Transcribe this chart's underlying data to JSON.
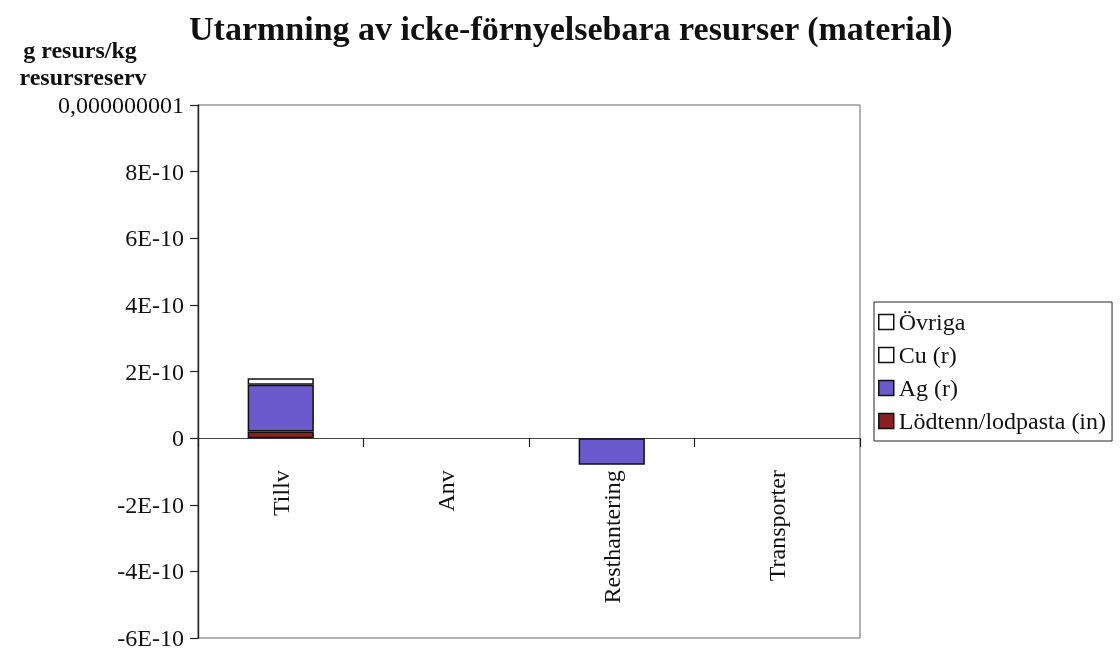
{
  "chart_data": {
    "type": "bar",
    "title": "Utarmning av icke-förnyelsebara resurser (material)",
    "ylabel": "g resurs/kg resursreserv",
    "categories": [
      "Tillv",
      "Anv",
      "Resthantering",
      "Transporter"
    ],
    "stacked": true,
    "series": [
      {
        "name": "Lödtenn/lodpasta (in)",
        "color": "#8b2020",
        "values": [
          2e-11,
          null,
          null,
          null
        ]
      },
      {
        "name": "Ag (r)",
        "color": "#6a5acd",
        "values": [
          1.4e-10,
          null,
          -8e-11,
          null
        ]
      },
      {
        "name": "Cu (r)",
        "color": "#ffffff",
        "values": [
          2e-11,
          null,
          null,
          null
        ]
      },
      {
        "name": "Övriga",
        "color": "#ffffff",
        "values": [
          null,
          null,
          null,
          null
        ]
      }
    ],
    "ylim": [
      -6e-10,
      1e-09
    ],
    "yticks": [
      {
        "value": -6e-10,
        "label": "-6E-10"
      },
      {
        "value": -4e-10,
        "label": "-4E-10"
      },
      {
        "value": -2e-10,
        "label": "-2E-10"
      },
      0,
      {
        "value": 2e-10,
        "label": "2E-10"
      },
      {
        "value": 4e-10,
        "label": "4E-10"
      },
      {
        "value": 6e-10,
        "label": "6E-10"
      },
      {
        "value": 8e-10,
        "label": "8E-10"
      },
      {
        "value": 1e-09,
        "label": "0,000000001"
      }
    ],
    "grid": false,
    "legend": "right"
  }
}
